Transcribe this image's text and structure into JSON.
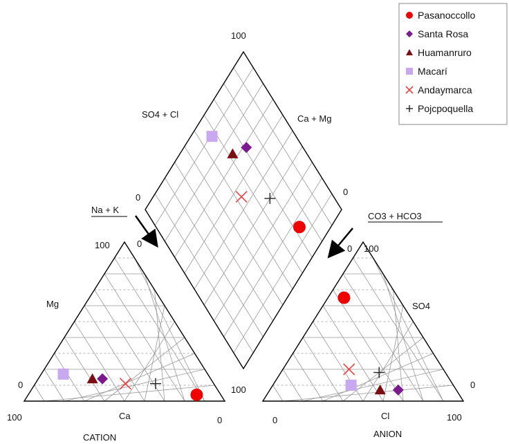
{
  "chart_data": {
    "type": "scatter",
    "chart_kind": "piper-diagram",
    "colors": {
      "Pasanoccollo": "#f00000",
      "Santa Rosa": "#7a1a8c",
      "Huamanruro": "#7a0e12",
      "Macarí": "#c8a8ee",
      "Andaymarca": "#f04040",
      "Pojcpoquella": "#222222"
    },
    "legend": {
      "position": "top-right",
      "entries": [
        {
          "name": "Pasanoccollo",
          "marker": "circle"
        },
        {
          "name": "Santa Rosa",
          "marker": "diamond"
        },
        {
          "name": "Huamanruro",
          "marker": "triangle"
        },
        {
          "name": "Macarí",
          "marker": "square"
        },
        {
          "name": "Andaymarca",
          "marker": "x"
        },
        {
          "name": "Pojcpoquella",
          "marker": "plus"
        }
      ]
    },
    "cation_triangle": {
      "title": "CATION",
      "axis_labels": {
        "ca": "Ca",
        "mg": "Mg",
        "na_k": "Na + K"
      },
      "tick_labels": {
        "ca_100": "100",
        "na_k_100": "0",
        "mg_100": "100",
        "mg_0": "0",
        "na_k_0": "0"
      },
      "samples": [
        {
          "name": "Pasanoccollo",
          "ca": 12,
          "mg": 4,
          "na_k": 84
        },
        {
          "name": "Santa Rosa",
          "ca": 54,
          "mg": 14,
          "na_k": 32
        },
        {
          "name": "Huamanruro",
          "ca": 59,
          "mg": 14,
          "na_k": 27
        },
        {
          "name": "Macarí",
          "ca": 72,
          "mg": 17,
          "na_k": 11
        },
        {
          "name": "Andaymarca",
          "ca": 44,
          "mg": 11,
          "na_k": 45
        },
        {
          "name": "Pojcpoquella",
          "ca": 29,
          "mg": 11,
          "na_k": 60
        }
      ]
    },
    "anion_triangle": {
      "title": "ANION",
      "axis_labels": {
        "cl": "Cl",
        "so4": "SO4",
        "co3_hco3": "CO3 + HCO3"
      },
      "tick_labels": {
        "cl_0": "0",
        "cl_100": "100",
        "so4_100": "100",
        "so4_0": "0",
        "co3_100": "100",
        "co3_0": "0"
      },
      "samples": [
        {
          "name": "Pasanoccollo",
          "cl": 8,
          "so4": 65,
          "co3_hco3": 27
        },
        {
          "name": "Santa Rosa",
          "cl": 64,
          "so4": 7,
          "co3_hco3": 29
        },
        {
          "name": "Huamanruro",
          "cl": 55,
          "so4": 7,
          "co3_hco3": 38
        },
        {
          "name": "Macarí",
          "cl": 39,
          "so4": 10,
          "co3_hco3": 51
        },
        {
          "name": "Andaymarca",
          "cl": 33,
          "so4": 20,
          "co3_hco3": 47
        },
        {
          "name": "Pojcpoquella",
          "cl": 49,
          "so4": 18,
          "co3_hco3": 33
        }
      ]
    },
    "diamond": {
      "axis_labels": {
        "so4_cl": "SO4 + Cl",
        "ca_mg": "Ca + Mg"
      },
      "tick_labels": {
        "top": "100",
        "left": "0",
        "right": "0",
        "bottom": "100",
        "left_inner": "0",
        "right_inner": "0"
      },
      "samples": [
        {
          "name": "Pasanoccollo",
          "so4_cl": 73,
          "ca_mg": 16
        },
        {
          "name": "Santa Rosa",
          "so4_cl": 71,
          "ca_mg": 68
        },
        {
          "name": "Huamanruro",
          "so4_cl": 62,
          "ca_mg": 73
        },
        {
          "name": "Macarí",
          "so4_cl": 57,
          "ca_mg": 89
        },
        {
          "name": "Andaymarca",
          "so4_cl": 53,
          "ca_mg": 55
        },
        {
          "name": "Pojcpoquella",
          "so4_cl": 67,
          "ca_mg": 40
        }
      ]
    },
    "grid": true
  }
}
